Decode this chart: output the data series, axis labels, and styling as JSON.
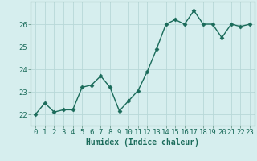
{
  "x": [
    0,
    1,
    2,
    3,
    4,
    5,
    6,
    7,
    8,
    9,
    10,
    11,
    12,
    13,
    14,
    15,
    16,
    17,
    18,
    19,
    20,
    21,
    22,
    23
  ],
  "y": [
    22.0,
    22.5,
    22.1,
    22.2,
    22.2,
    23.2,
    23.3,
    23.7,
    23.2,
    22.15,
    22.6,
    23.05,
    23.9,
    24.9,
    26.0,
    26.2,
    26.0,
    26.6,
    26.0,
    26.0,
    25.4,
    26.0,
    25.9,
    26.0
  ],
  "line_color": "#1a6b5a",
  "marker": "D",
  "marker_size": 2.5,
  "bg_color": "#d6eeee",
  "grid_color": "#b8d8d8",
  "xlabel": "Humidex (Indice chaleur)",
  "ylim": [
    21.5,
    27.0
  ],
  "xlim": [
    -0.5,
    23.5
  ],
  "yticks": [
    22,
    23,
    24,
    25,
    26
  ],
  "xticks": [
    0,
    1,
    2,
    3,
    4,
    5,
    6,
    7,
    8,
    9,
    10,
    11,
    12,
    13,
    14,
    15,
    16,
    17,
    18,
    19,
    20,
    21,
    22,
    23
  ],
  "xlabel_fontsize": 7,
  "tick_fontsize": 6.5,
  "tick_color": "#1a6b5a",
  "spine_color": "#5a8a7a",
  "linewidth": 1.0
}
